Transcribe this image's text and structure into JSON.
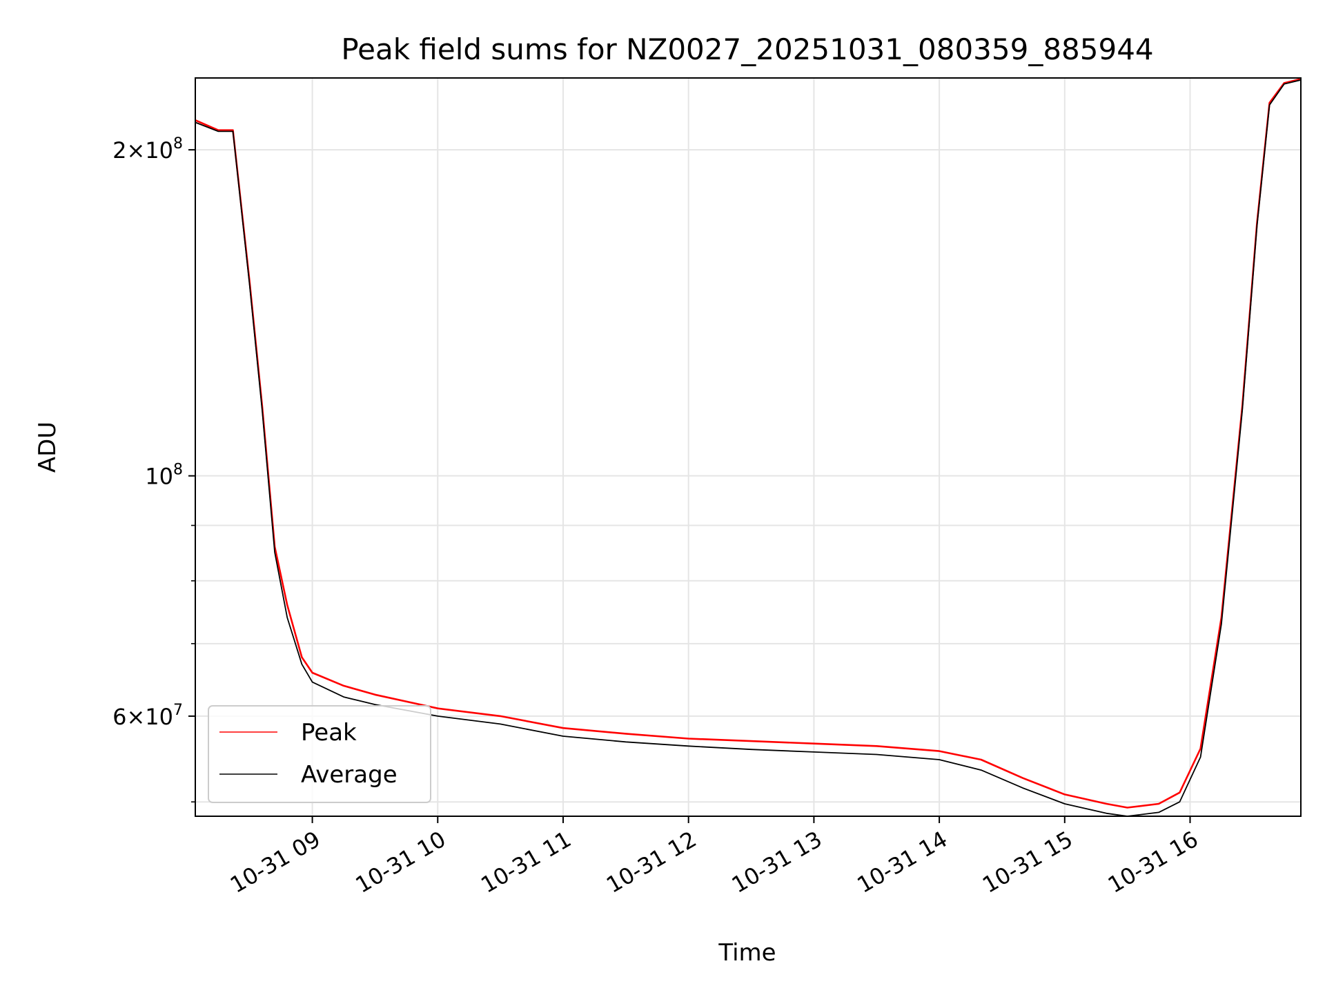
{
  "chart_data": {
    "type": "line",
    "title": "Peak field sums for NZ0027_20251031_080359_885944",
    "xlabel": "Time",
    "ylabel": "ADU",
    "yscale": "log",
    "xlim": [
      "2025-10-31T08:04",
      "2025-10-31T16:53"
    ],
    "ylim": [
      48500000,
      233000000
    ],
    "grid": true,
    "legend": {
      "position": "lower-left",
      "entries": [
        "Peak",
        "Average"
      ]
    },
    "x_ticks": [
      "10-31 09",
      "10-31 10",
      "10-31 11",
      "10-31 12",
      "10-31 13",
      "10-31 14",
      "10-31 15",
      "10-31 16"
    ],
    "y_ticks": [
      {
        "value": 200000000,
        "mantissa": "2",
        "exponent": "8"
      },
      {
        "value": 100000000,
        "mantissa": "",
        "exponent": "8"
      },
      {
        "value": 60000000,
        "mantissa": "6",
        "exponent": "7"
      }
    ],
    "y_minor_ticks": [
      50000000,
      70000000,
      80000000,
      90000000
    ],
    "colors": {
      "Peak": "#ff0000",
      "Average": "#000000"
    },
    "series": [
      {
        "name": "Average",
        "x": [
          "2025-10-31T08:04",
          "2025-10-31T08:15",
          "2025-10-31T08:22",
          "2025-10-31T08:30",
          "2025-10-31T08:36",
          "2025-10-31T08:42",
          "2025-10-31T08:48",
          "2025-10-31T08:55",
          "2025-10-31T09:00",
          "2025-10-31T09:15",
          "2025-10-31T09:30",
          "2025-10-31T10:00",
          "2025-10-31T10:30",
          "2025-10-31T11:00",
          "2025-10-31T11:30",
          "2025-10-31T12:00",
          "2025-10-31T12:30",
          "2025-10-31T13:00",
          "2025-10-31T13:30",
          "2025-10-31T14:00",
          "2025-10-31T14:20",
          "2025-10-31T14:40",
          "2025-10-31T15:00",
          "2025-10-31T15:20",
          "2025-10-31T15:30",
          "2025-10-31T15:45",
          "2025-10-31T15:55",
          "2025-10-31T16:05",
          "2025-10-31T16:15",
          "2025-10-31T16:25",
          "2025-10-31T16:32",
          "2025-10-31T16:38",
          "2025-10-31T16:45",
          "2025-10-31T16:53"
        ],
        "y": [
          212000000,
          208000000,
          208000000,
          150000000,
          115000000,
          85000000,
          74000000,
          67000000,
          64500000,
          62500000,
          61500000,
          60000000,
          59000000,
          57500000,
          56800000,
          56300000,
          55900000,
          55600000,
          55300000,
          54700000,
          53500000,
          51500000,
          49800000,
          48800000,
          48500000,
          48900000,
          50000000,
          55000000,
          73000000,
          115000000,
          170000000,
          220000000,
          230000000,
          232000000
        ]
      },
      {
        "name": "Peak",
        "x": [
          "2025-10-31T08:04",
          "2025-10-31T08:15",
          "2025-10-31T08:22",
          "2025-10-31T08:30",
          "2025-10-31T08:36",
          "2025-10-31T08:42",
          "2025-10-31T08:48",
          "2025-10-31T08:55",
          "2025-10-31T09:00",
          "2025-10-31T09:15",
          "2025-10-31T09:30",
          "2025-10-31T10:00",
          "2025-10-31T10:30",
          "2025-10-31T11:00",
          "2025-10-31T11:30",
          "2025-10-31T12:00",
          "2025-10-31T12:30",
          "2025-10-31T13:00",
          "2025-10-31T13:30",
          "2025-10-31T14:00",
          "2025-10-31T14:20",
          "2025-10-31T14:40",
          "2025-10-31T15:00",
          "2025-10-31T15:20",
          "2025-10-31T15:30",
          "2025-10-31T15:45",
          "2025-10-31T15:55",
          "2025-10-31T16:05",
          "2025-10-31T16:15",
          "2025-10-31T16:25",
          "2025-10-31T16:32",
          "2025-10-31T16:38",
          "2025-10-31T16:45",
          "2025-10-31T16:53"
        ],
        "y": [
          213000000,
          208500000,
          208500000,
          151000000,
          116000000,
          86000000,
          76000000,
          68000000,
          65800000,
          64000000,
          62800000,
          61000000,
          60000000,
          58500000,
          57800000,
          57200000,
          56900000,
          56600000,
          56300000,
          55700000,
          54700000,
          52600000,
          50800000,
          49800000,
          49400000,
          49800000,
          51000000,
          56000000,
          74000000,
          116000000,
          171000000,
          221000000,
          230500000,
          232500000
        ]
      }
    ]
  }
}
